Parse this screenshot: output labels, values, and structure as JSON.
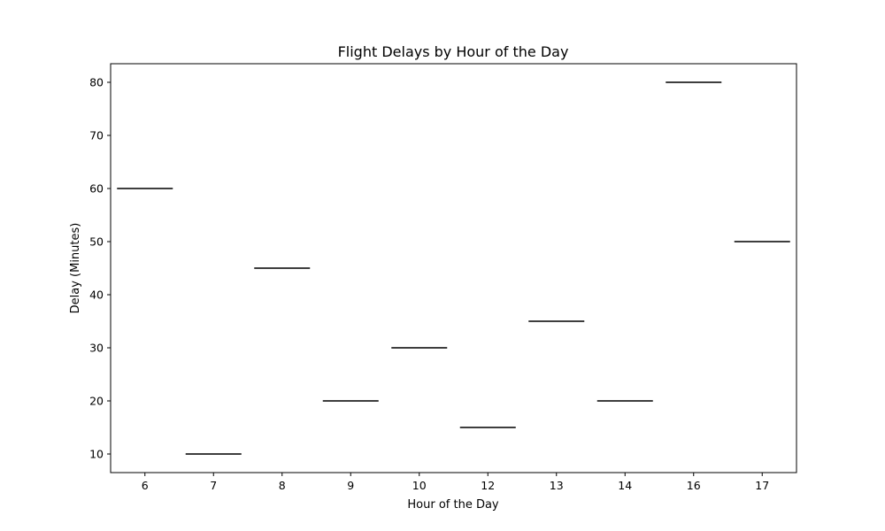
{
  "chart_data": {
    "type": "box",
    "title": "Flight Delays by Hour of the Day",
    "xlabel": "Hour of the Day",
    "ylabel": "Delay (Minutes)",
    "categories": [
      "6",
      "7",
      "8",
      "9",
      "10",
      "12",
      "13",
      "14",
      "16",
      "17"
    ],
    "values": [
      60,
      10,
      45,
      20,
      30,
      15,
      35,
      20,
      80,
      50
    ],
    "ylim": [
      6.5,
      83.5
    ],
    "yticks": [
      10,
      20,
      30,
      40,
      50,
      60,
      70,
      80
    ],
    "grid": false,
    "colors": {
      "box_line": "#3f3f3f",
      "axis": "#000000"
    }
  }
}
